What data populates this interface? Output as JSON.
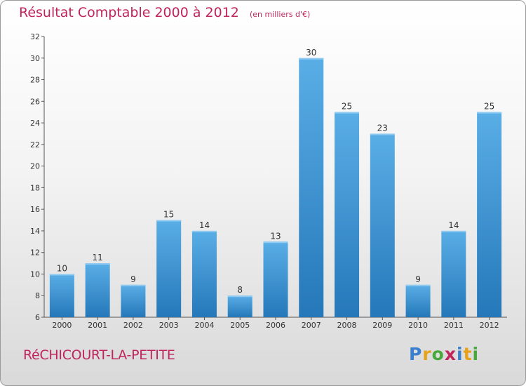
{
  "header": {
    "title": "Résultat Comptable 2000 à 2012",
    "unit": "(en milliers d'€)"
  },
  "footer": {
    "commune": "RéCHICOURT-LA-PETITE",
    "logo": [
      "P",
      "r",
      "o",
      "x",
      "i",
      "t",
      "i"
    ]
  },
  "colors": {
    "bar_light": "#5aaee6",
    "bar_dark": "#2578b9",
    "accent": "#c0245c"
  },
  "chart_data": {
    "type": "bar",
    "title": "Résultat Comptable 2000 à 2012",
    "ylabel": "(en milliers d'€)",
    "xlabel": "",
    "categories": [
      "2000",
      "2001",
      "2002",
      "2003",
      "2004",
      "2005",
      "2006",
      "2007",
      "2008",
      "2009",
      "2010",
      "2011",
      "2012"
    ],
    "values": [
      10,
      11,
      9,
      15,
      14,
      8,
      13,
      30,
      25,
      23,
      9,
      14,
      25
    ],
    "ylim": [
      6,
      32
    ],
    "yticks": [
      6,
      8,
      10,
      12,
      14,
      16,
      18,
      20,
      22,
      24,
      26,
      28,
      30,
      32
    ],
    "grid": false,
    "data_labels": true
  }
}
